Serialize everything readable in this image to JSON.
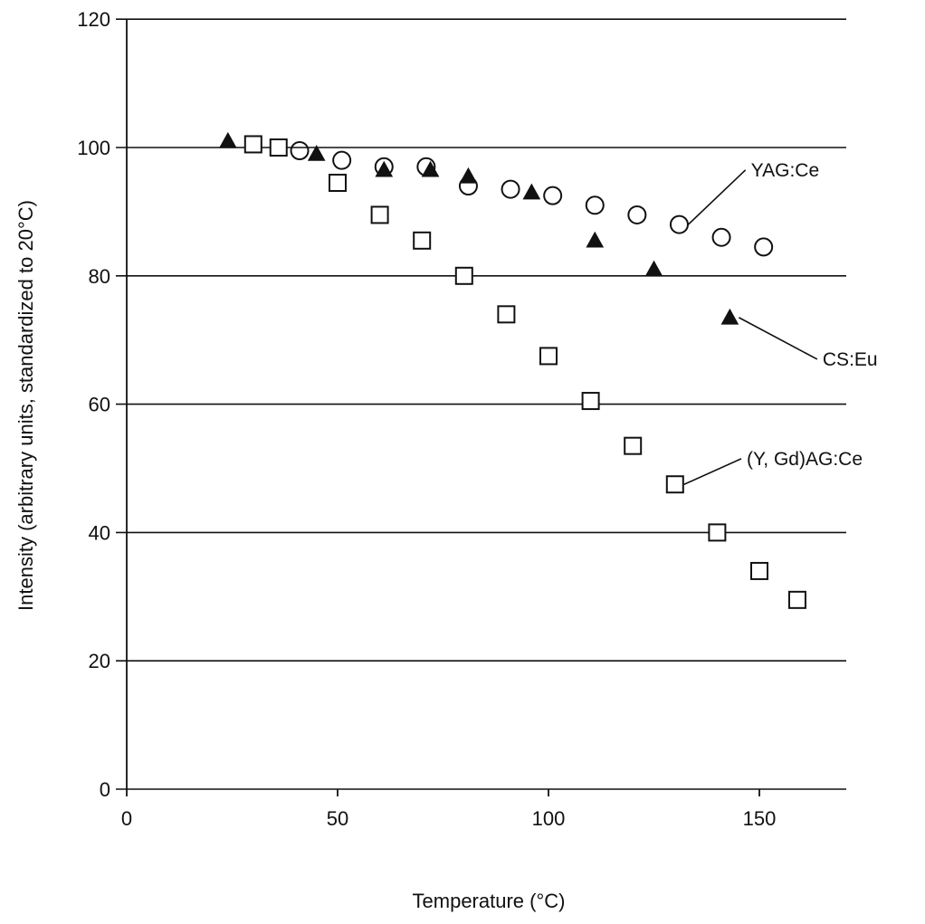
{
  "chart_data": {
    "type": "scatter",
    "title": "",
    "xlabel": "Temperature (°C)",
    "ylabel": "Intensity (arbitrary units, standardized to 20°C)",
    "xlim": [
      0,
      170
    ],
    "ylim": [
      0,
      120
    ],
    "x_ticks": [
      0,
      50,
      100,
      150
    ],
    "y_ticks": [
      0,
      20,
      40,
      60,
      80,
      100,
      120
    ],
    "grid": "horizontal",
    "legend": "none (series labelled by callouts on the right)",
    "series": [
      {
        "name": "YAG:Ce",
        "marker": "open-circle",
        "color": "#111111",
        "points": [
          [
            41,
            99.5
          ],
          [
            51,
            98
          ],
          [
            61,
            97
          ],
          [
            71,
            97
          ],
          [
            81,
            94
          ],
          [
            91,
            93.5
          ],
          [
            101,
            92.5
          ],
          [
            111,
            91
          ],
          [
            121,
            89.5
          ],
          [
            131,
            88
          ],
          [
            141,
            86
          ],
          [
            151,
            84.5
          ]
        ]
      },
      {
        "name": "CS:Eu",
        "marker": "filled-triangle",
        "color": "#111111",
        "points": [
          [
            24,
            101
          ],
          [
            45,
            99
          ],
          [
            61,
            96.5
          ],
          [
            72,
            96.5
          ],
          [
            81,
            95.5
          ],
          [
            96,
            93
          ],
          [
            111,
            85.5
          ],
          [
            125,
            81
          ],
          [
            143,
            73.5
          ]
        ]
      },
      {
        "name": "(Y, Gd)AG:Ce",
        "marker": "open-square",
        "color": "#111111",
        "points": [
          [
            30,
            100.5
          ],
          [
            36,
            100
          ],
          [
            50,
            94.5
          ],
          [
            60,
            89.5
          ],
          [
            70,
            85.5
          ],
          [
            80,
            80
          ],
          [
            90,
            74
          ],
          [
            100,
            67.5
          ],
          [
            110,
            60.5
          ],
          [
            120,
            53.5
          ],
          [
            130,
            47.5
          ],
          [
            140,
            40
          ],
          [
            150,
            34
          ],
          [
            159,
            29.5
          ]
        ]
      }
    ],
    "annotations": [
      {
        "series": "YAG:Ce",
        "text": "YAG:Ce",
        "anchor": [
          131,
          88
        ],
        "label_at": [
          148,
          96.5
        ]
      },
      {
        "series": "CS:Eu",
        "text": "CS:Eu",
        "anchor": [
          143,
          73.5
        ],
        "label_at": [
          165,
          67
        ]
      },
      {
        "series": "(Y, Gd)AG:Ce",
        "text": "(Y, Gd)AG:Ce",
        "anchor": [
          130,
          47.5
        ],
        "label_at": [
          147,
          51.5
        ]
      }
    ]
  }
}
